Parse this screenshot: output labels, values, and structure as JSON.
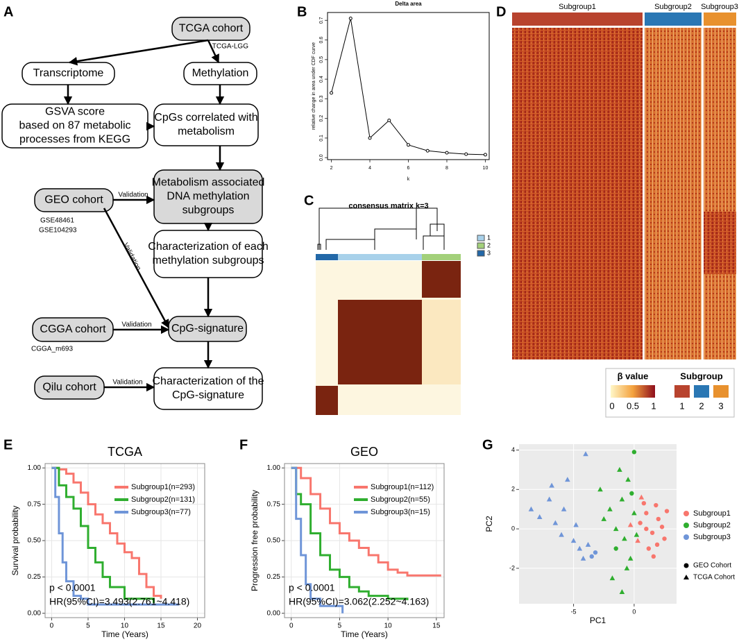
{
  "panel_labels": [
    "A",
    "B",
    "C",
    "D",
    "E",
    "F",
    "G"
  ],
  "diagram": {
    "nodes": [
      {
        "lines": [
          "TCGA cohort"
        ],
        "gray": true
      },
      {
        "lines": [
          "Transcriptome"
        ],
        "gray": false
      },
      {
        "lines": [
          "Methylation"
        ],
        "gray": false
      },
      {
        "lines": [
          "GSVA score",
          "based on 87 metabolic",
          "processes from KEGG"
        ],
        "gray": false
      },
      {
        "lines": [
          "CpGs correlated with",
          "metabolism"
        ],
        "gray": false
      },
      {
        "lines": [
          "GEO cohort"
        ],
        "gray": true
      },
      {
        "lines": [
          "Metabolism associated",
          "DNA methylation",
          "subgroups"
        ],
        "gray": true
      },
      {
        "lines": [
          "Characterization of each",
          "methylation subgroups"
        ],
        "gray": false
      },
      {
        "lines": [
          "CGGA cohort"
        ],
        "gray": true
      },
      {
        "lines": [
          "CpG-signature"
        ],
        "gray": true
      },
      {
        "lines": [
          "Qilu cohort"
        ],
        "gray": true
      },
      {
        "lines": [
          "Characterization of the",
          "CpG-signature"
        ],
        "gray": false
      }
    ],
    "notes": [
      "TCGA-LGG",
      "GSE48461",
      "GSE104293",
      "CGGA_m693"
    ],
    "edge_labels": [
      "Validation",
      "Validation",
      "Validation",
      "Validation"
    ]
  },
  "heatmap_c": {
    "title": "consensus matrix k=3",
    "legend": [
      "1",
      "2",
      "3"
    ]
  },
  "heatmap_d": {
    "groups": [
      "Subgroup1",
      "Subgroup2",
      "Subgroup3"
    ],
    "beta_title": "β value",
    "beta_ticks": [
      "0",
      "0.5",
      "1"
    ],
    "subgroup_title": "Subgroup",
    "subgroup_ticks": [
      "1",
      "2",
      "3"
    ]
  },
  "chart_data": [
    {
      "type": "line",
      "title": "Delta area",
      "xlabel": "k",
      "ylabel": "relative change in area under CDF curve",
      "x": [
        2,
        3,
        4,
        5,
        6,
        7,
        8,
        9,
        10
      ],
      "values": [
        0.33,
        0.71,
        0.1,
        0.19,
        0.065,
        0.035,
        0.025,
        0.018,
        0.015
      ],
      "color": "#000000",
      "xlim": [
        1.8,
        10.2
      ],
      "ylim": [
        -0.01,
        0.74
      ],
      "xticks": [
        2,
        4,
        6,
        8,
        10
      ],
      "yticks": [
        {
          "value": 0,
          "label": "0.0"
        },
        0.1,
        0.2,
        0.3,
        0.4,
        0.5,
        0.6,
        0.7
      ],
      "grid": false
    },
    {
      "type": "step",
      "title": "TCGA",
      "xlabel": "Time (Years)",
      "ylabel": "Survival probability",
      "annotations": [
        "p < 0.0001",
        "HR(95%CI)=3.493(2.761~4.418)"
      ],
      "series": [
        {
          "name": "Subgroup1(n=293)",
          "color": "#f8766d",
          "x": [
            0,
            1,
            2,
            3,
            4,
            5,
            6,
            7,
            8,
            9,
            10,
            11,
            12,
            13,
            14,
            15
          ],
          "values": [
            1,
            0.99,
            0.96,
            0.9,
            0.83,
            0.75,
            0.68,
            0.62,
            0.55,
            0.48,
            0.42,
            0.38,
            0.27,
            0.18,
            0.12,
            0.1
          ]
        },
        {
          "name": "Subgroup2(n=131)",
          "color": "#2fae2f",
          "x": [
            0,
            1,
            2,
            3,
            4,
            5,
            6,
            7,
            8,
            10,
            14
          ],
          "values": [
            1,
            0.88,
            0.8,
            0.72,
            0.6,
            0.45,
            0.35,
            0.25,
            0.18,
            0.1,
            0.07
          ]
        },
        {
          "name": "Subgroup3(n=77)",
          "color": "#6f95d8",
          "x": [
            0,
            0.5,
            1,
            1.5,
            2,
            3,
            4,
            5,
            17.5
          ],
          "values": [
            1,
            0.8,
            0.55,
            0.35,
            0.22,
            0.12,
            0.1,
            0.06,
            0.06
          ]
        }
      ],
      "xlim": [
        -0.9,
        21
      ],
      "ylim": [
        -0.03,
        1.03
      ],
      "xticks": [
        0,
        5,
        10,
        15,
        20
      ],
      "yticks": [
        {
          "value": 0,
          "label": "0.00"
        },
        {
          "value": 0.25,
          "label": "0.25"
        },
        {
          "value": 0.5,
          "label": "0.50"
        },
        {
          "value": 0.75,
          "label": "0.75"
        },
        {
          "value": 1,
          "label": "1.00"
        }
      ],
      "grid": true
    },
    {
      "type": "step",
      "title": "GEO",
      "xlabel": "Time (Years)",
      "ylabel": "Progression free probability",
      "annotations": [
        "p < 0.0001",
        "HR(95%CI)=3.062(2.252~4.163)"
      ],
      "series": [
        {
          "name": "Subgroup1(n=112)",
          "color": "#f8766d",
          "x": [
            0,
            1,
            2,
            3,
            4,
            5,
            6,
            7,
            8,
            9,
            10,
            11,
            12,
            15.5
          ],
          "values": [
            1,
            0.93,
            0.82,
            0.72,
            0.62,
            0.55,
            0.5,
            0.45,
            0.4,
            0.35,
            0.3,
            0.28,
            0.26,
            0.26
          ]
        },
        {
          "name": "Subgroup2(n=55)",
          "color": "#2fae2f",
          "x": [
            0,
            0.5,
            1,
            2,
            3,
            4,
            5,
            6,
            7,
            8,
            10,
            12
          ],
          "values": [
            1,
            0.82,
            0.75,
            0.55,
            0.4,
            0.3,
            0.25,
            0.18,
            0.15,
            0.12,
            0.1,
            0.09
          ]
        },
        {
          "name": "Subgroup3(n=15)",
          "color": "#6f95d8",
          "x": [
            0,
            0.5,
            1,
            1.5,
            2,
            3,
            5.3
          ],
          "values": [
            1,
            0.65,
            0.4,
            0.2,
            0.1,
            0.05,
            0
          ]
        }
      ],
      "xlim": [
        -0.7,
        15.8
      ],
      "ylim": [
        -0.03,
        1.03
      ],
      "xticks": [
        0,
        5,
        10,
        15
      ],
      "yticks": [
        {
          "value": 0,
          "label": "0.00"
        },
        {
          "value": 0.25,
          "label": "0.25"
        },
        {
          "value": 0.5,
          "label": "0.50"
        },
        {
          "value": 0.75,
          "label": "0.75"
        },
        {
          "value": 1,
          "label": "1.00"
        }
      ],
      "grid": true
    },
    {
      "type": "scatter",
      "xlabel": "PC1",
      "ylabel": "PC2",
      "series": [
        {
          "name": "Subgroup1",
          "color": "#f8766d",
          "x": [
            0.5,
            1,
            1.5,
            2,
            2.5,
            1.2,
            0.8,
            1.8,
            2.3,
            1,
            0.3,
            1.6,
            2.7,
            0.6,
            1.9,
            -0.3
          ],
          "values": [
            0.3,
            0.8,
            -0.2,
            0.5,
            -0.5,
            -1,
            1.3,
            1.2,
            0.1,
            0,
            -0.6,
            -1.4,
            0.9,
            1.6,
            -0.8,
            0.2
          ],
          "markers": [
            "circle",
            "circle",
            "circle",
            "circle",
            "circle",
            "circle",
            "circle",
            "circle",
            "circle",
            "circle",
            "triangle",
            "circle",
            "circle",
            "triangle",
            "circle",
            "triangle"
          ]
        },
        {
          "name": "Subgroup2",
          "color": "#2fae2f",
          "x": [
            -0.5,
            -1,
            -2,
            -1.5,
            -0.8,
            -2.5,
            -1.2,
            0,
            -0.3,
            -1.8,
            -0.6,
            -1,
            0,
            -0.2,
            -2.8,
            -1.5,
            0.2
          ],
          "values": [
            2.5,
            1.5,
            1,
            0,
            -0.5,
            0.5,
            3,
            0.8,
            -1.5,
            -2.5,
            -2,
            -3.2,
            3.9,
            1.8,
            2,
            -1,
            -0.3
          ],
          "markers": [
            "triangle",
            "triangle",
            "triangle",
            "triangle",
            "triangle",
            "triangle",
            "triangle",
            "triangle",
            "triangle",
            "triangle",
            "triangle",
            "triangle",
            "circle",
            "circle",
            "triangle",
            "circle",
            "triangle"
          ]
        },
        {
          "name": "Subgroup3",
          "color": "#6f95d8",
          "x": [
            -8.5,
            -7.8,
            -7,
            -6.5,
            -6,
            -5.5,
            -5,
            -4.5,
            -4,
            -3.8,
            -3.5,
            -4.2,
            -6.8,
            -5.8,
            -3.2,
            -4.8
          ],
          "values": [
            1,
            0.6,
            1.5,
            0.3,
            -0.3,
            2.5,
            -0.6,
            -1,
            3.8,
            -0.8,
            -1.4,
            -1.5,
            2.2,
            1,
            -1.2,
            0.2
          ],
          "markers": [
            "triangle",
            "triangle",
            "triangle",
            "triangle",
            "triangle",
            "triangle",
            "triangle",
            "triangle",
            "triangle",
            "triangle",
            "circle",
            "triangle",
            "triangle",
            "triangle",
            "circle",
            "triangle"
          ]
        }
      ],
      "shape_legend": [
        {
          "marker": "circle",
          "label": "GEO Cohort"
        },
        {
          "marker": "triangle",
          "label": "TCGA Cohort"
        }
      ],
      "xlim": [
        -9.5,
        3.5
      ],
      "ylim": [
        -3.8,
        4.3
      ],
      "xticks": [
        -5,
        0
      ],
      "yticks": [
        -2,
        0,
        2,
        4
      ],
      "grid": true
    }
  ]
}
